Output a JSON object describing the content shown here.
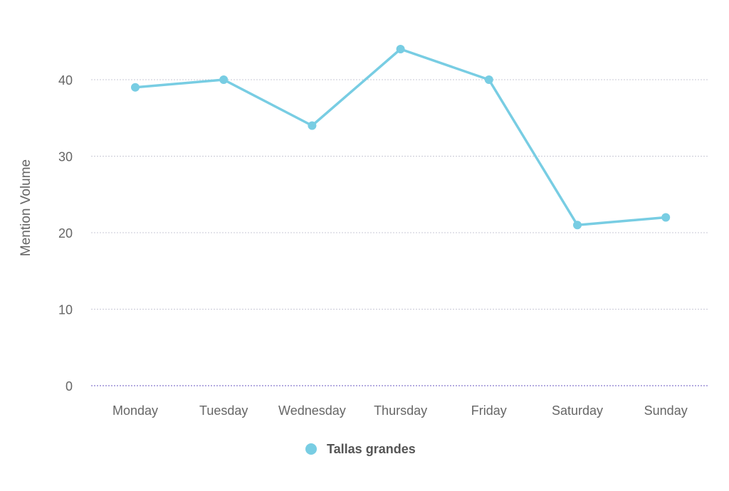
{
  "chart_data": {
    "type": "line",
    "categories": [
      "Monday",
      "Tuesday",
      "Wednesday",
      "Thursday",
      "Friday",
      "Saturday",
      "Sunday"
    ],
    "series": [
      {
        "name": "Tallas grandes",
        "values": [
          39,
          40,
          34,
          44,
          40,
          21,
          22
        ],
        "color": "#78cde3"
      }
    ],
    "ylabel": "Mention Volume",
    "xlabel": "",
    "ylim": [
      0,
      45
    ],
    "yticks": [
      0,
      10,
      20,
      30,
      40
    ],
    "grid": true,
    "grid_style": "dotted",
    "legend_position": "bottom-center"
  }
}
